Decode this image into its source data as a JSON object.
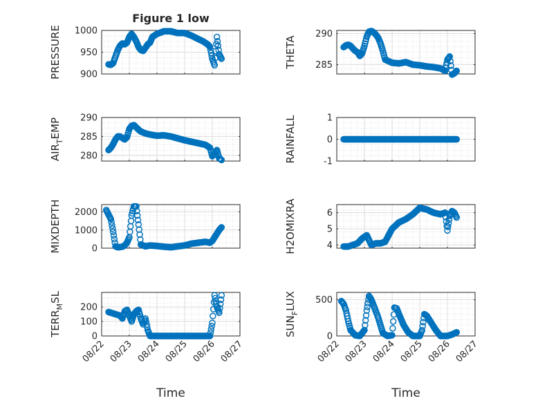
{
  "figure": {
    "title": "Figure 1 low"
  },
  "chart_data": [
    {
      "type": "scatter",
      "title": "Figure 1 low",
      "ylabel": "PRESSURE",
      "ylabel_sub": "",
      "ylim": [
        900,
        1000
      ],
      "yticks": [
        "900",
        "950",
        "1000"
      ],
      "xlim": [
        "08/22",
        "08/27"
      ],
      "xticks": [],
      "xlabel": "",
      "grid": true,
      "minor_grid": true,
      "marker": "open-circle",
      "color": "#0072bd",
      "x": [
        "08/22 06:00",
        "08/22 08:00",
        "08/22 10:00",
        "08/22 12:00",
        "08/22 14:00",
        "08/22 16:00",
        "08/22 18:00",
        "08/22 20:00",
        "08/22 22:00",
        "08/23 00:00",
        "08/23 02:00",
        "08/23 04:00",
        "08/23 06:00",
        "08/23 08:00",
        "08/23 10:00",
        "08/23 12:00",
        "08/23 14:00",
        "08/23 16:00",
        "08/23 18:00",
        "08/23 20:00",
        "08/24 00:00",
        "08/24 06:00",
        "08/24 12:00",
        "08/24 18:00",
        "08/25 00:00",
        "08/25 06:00",
        "08/25 12:00",
        "08/25 16:00",
        "08/25 20:00",
        "08/25 22:00",
        "08/26 00:00",
        "08/26 02:00",
        "08/26 04:00",
        "08/26 06:00",
        "08/26 08:00"
      ],
      "y": [
        922,
        921,
        925,
        940,
        955,
        965,
        970,
        968,
        972,
        985,
        992,
        985,
        975,
        962,
        955,
        953,
        960,
        968,
        972,
        985,
        992,
        998,
        998,
        994,
        994,
        988,
        980,
        975,
        968,
        962,
        935,
        920,
        985,
        945,
        935
      ]
    },
    {
      "type": "scatter",
      "title": "",
      "ylabel": "THETA",
      "ylabel_sub": "",
      "ylim": [
        283.5,
        290.5
      ],
      "yticks": [
        "285",
        "290"
      ],
      "xlim": [
        "08/22",
        "08/27"
      ],
      "xticks": [],
      "xlabel": "",
      "grid": true,
      "minor_grid": true,
      "marker": "open-circle",
      "color": "#0072bd",
      "x": [
        "08/22 06:00",
        "08/22 08:00",
        "08/22 10:00",
        "08/22 12:00",
        "08/22 14:00",
        "08/22 16:00",
        "08/22 18:00",
        "08/22 20:00",
        "08/22 22:00",
        "08/23 00:00",
        "08/23 02:00",
        "08/23 04:00",
        "08/23 06:00",
        "08/23 08:00",
        "08/23 10:00",
        "08/23 12:00",
        "08/23 14:00",
        "08/23 16:00",
        "08/23 18:00",
        "08/24 00:00",
        "08/24 06:00",
        "08/24 12:00",
        "08/24 18:00",
        "08/25 00:00",
        "08/25 06:00",
        "08/25 12:00",
        "08/25 18:00",
        "08/25 22:00",
        "08/26 00:00",
        "08/26 02:00",
        "08/26 04:00",
        "08/26 06:00",
        "08/26 08:00"
      ],
      "y": [
        287.8,
        288.1,
        288.2,
        288.0,
        287.6,
        287.2,
        287.0,
        286.4,
        286.8,
        288.0,
        289.5,
        290.3,
        290.4,
        290.2,
        289.8,
        289.3,
        288.4,
        287.2,
        285.8,
        285.3,
        285.2,
        285.4,
        285.0,
        284.9,
        284.7,
        284.6,
        284.4,
        284.0,
        285.8,
        286.3,
        283.4,
        283.6,
        284.0
      ]
    },
    {
      "type": "scatter",
      "title": "",
      "ylabel": "AIR",
      "ylabel_sub": "T",
      "ylabel_rest": "EMP",
      "ylim": [
        278.5,
        290
      ],
      "yticks": [
        "280",
        "285",
        "290"
      ],
      "xlim": [
        "08/22",
        "08/27"
      ],
      "xticks": [],
      "xlabel": "",
      "grid": true,
      "minor_grid": true,
      "marker": "open-circle",
      "color": "#0072bd",
      "x": [
        "08/22 06:00",
        "08/22 08:00",
        "08/22 10:00",
        "08/22 12:00",
        "08/22 14:00",
        "08/22 16:00",
        "08/22 18:00",
        "08/22 20:00",
        "08/22 22:00",
        "08/23 00:00",
        "08/23 02:00",
        "08/23 04:00",
        "08/23 06:00",
        "08/23 08:00",
        "08/23 10:00",
        "08/23 14:00",
        "08/23 18:00",
        "08/24 00:00",
        "08/24 06:00",
        "08/24 12:00",
        "08/24 18:00",
        "08/25 00:00",
        "08/25 06:00",
        "08/25 12:00",
        "08/25 18:00",
        "08/25 22:00",
        "08/26 00:00",
        "08/26 02:00",
        "08/26 04:00",
        "08/26 06:00",
        "08/26 08:00"
      ],
      "y": [
        281.4,
        282.0,
        283.0,
        284.2,
        285.0,
        285.0,
        284.6,
        284.2,
        284.8,
        287.0,
        287.8,
        288.0,
        287.4,
        286.8,
        286.3,
        285.8,
        285.5,
        285.2,
        285.3,
        285.0,
        284.5,
        284.0,
        283.6,
        283.2,
        282.8,
        282.0,
        279.8,
        280.4,
        281.4,
        279.2,
        278.8
      ]
    },
    {
      "type": "scatter",
      "title": "",
      "ylabel": "RAINFALL",
      "ylabel_sub": "",
      "ylim": [
        -1,
        1
      ],
      "yticks": [
        "-1",
        "0",
        "1"
      ],
      "xlim": [
        "08/22",
        "08/27"
      ],
      "xticks": [],
      "xlabel": "",
      "grid": true,
      "minor_grid": true,
      "marker": "open-circle",
      "color": "#0072bd",
      "x": [
        "08/22 06:00",
        "08/22 12:00",
        "08/22 18:00",
        "08/23 00:00",
        "08/23 06:00",
        "08/23 12:00",
        "08/23 18:00",
        "08/24 00:00",
        "08/24 06:00",
        "08/24 12:00",
        "08/24 18:00",
        "08/25 00:00",
        "08/25 06:00",
        "08/25 12:00",
        "08/25 18:00",
        "08/26 00:00",
        "08/26 06:00",
        "08/26 08:00"
      ],
      "y": [
        0,
        0,
        0,
        0,
        0,
        0,
        0,
        0,
        0,
        0,
        0,
        0,
        0,
        0,
        0,
        0,
        0,
        0
      ]
    },
    {
      "type": "scatter",
      "title": "",
      "ylabel": "MIXDEPTH",
      "ylabel_sub": "",
      "ylim": [
        0,
        2400
      ],
      "yticks": [
        "0",
        "1000",
        "2000"
      ],
      "xlim": [
        "08/22",
        "08/27"
      ],
      "xticks": [],
      "xlabel": "",
      "grid": true,
      "minor_grid": true,
      "marker": "open-circle",
      "color": "#0072bd",
      "x": [
        "08/22 04:00",
        "08/22 06:00",
        "08/22 08:00",
        "08/22 10:00",
        "08/22 12:00",
        "08/22 14:00",
        "08/22 16:00",
        "08/22 18:00",
        "08/22 20:00",
        "08/22 22:00",
        "08/23 00:00",
        "08/23 02:00",
        "08/23 04:00",
        "08/23 06:00",
        "08/23 08:00",
        "08/23 10:00",
        "08/23 14:00",
        "08/23 18:00",
        "08/24 00:00",
        "08/24 06:00",
        "08/24 12:00",
        "08/24 18:00",
        "08/25 00:00",
        "08/25 06:00",
        "08/25 12:00",
        "08/25 18:00",
        "08/25 22:00",
        "08/26 00:00",
        "08/26 02:00",
        "08/26 04:00",
        "08/26 06:00",
        "08/26 08:00"
      ],
      "y": [
        2100,
        1850,
        1600,
        900,
        100,
        50,
        60,
        80,
        150,
        300,
        600,
        1800,
        2300,
        2300,
        1300,
        200,
        100,
        150,
        120,
        80,
        50,
        100,
        150,
        250,
        300,
        350,
        300,
        400,
        600,
        800,
        1000,
        1150
      ]
    },
    {
      "type": "scatter",
      "title": "",
      "ylabel": "H2OMIXRA",
      "ylabel_sub": "",
      "ylim": [
        3.8,
        6.5
      ],
      "yticks": [
        "4",
        "5",
        "6"
      ],
      "xlim": [
        "08/22",
        "08/27"
      ],
      "xticks": [],
      "xlabel": "",
      "grid": true,
      "minor_grid": true,
      "marker": "open-circle",
      "color": "#0072bd",
      "x": [
        "08/22 06:00",
        "08/22 10:00",
        "08/22 14:00",
        "08/22 18:00",
        "08/22 22:00",
        "08/23 02:00",
        "08/23 06:00",
        "08/23 10:00",
        "08/23 14:00",
        "08/23 18:00",
        "08/24 00:00",
        "08/24 06:00",
        "08/24 12:00",
        "08/24 18:00",
        "08/25 00:00",
        "08/25 06:00",
        "08/25 12:00",
        "08/25 18:00",
        "08/25 22:00",
        "08/26 00:00",
        "08/26 02:00",
        "08/26 04:00",
        "08/26 06:00",
        "08/26 08:00"
      ],
      "y": [
        3.9,
        3.9,
        4.0,
        4.1,
        4.4,
        4.6,
        4.0,
        4.1,
        4.1,
        4.2,
        5.0,
        5.4,
        5.6,
        5.9,
        6.3,
        6.2,
        6.0,
        5.9,
        6.0,
        4.9,
        5.8,
        6.1,
        6.0,
        5.7
      ]
    },
    {
      "type": "scatter",
      "title": "",
      "ylabel": "TERR",
      "ylabel_sub": "M",
      "ylabel_rest": "SL",
      "ylim": [
        0,
        300
      ],
      "yticks": [
        "0",
        "100",
        "200"
      ],
      "xlim": [
        "08/22",
        "08/27"
      ],
      "xticks": [
        "08/22",
        "08/23",
        "08/24",
        "08/25",
        "08/26",
        "08/27"
      ],
      "xlabel": "Time",
      "grid": true,
      "minor_grid": true,
      "marker": "open-circle",
      "color": "#0072bd",
      "x": [
        "08/22 06:00",
        "08/22 08:00",
        "08/22 12:00",
        "08/22 16:00",
        "08/22 18:00",
        "08/22 20:00",
        "08/22 22:00",
        "08/23 00:00",
        "08/23 02:00",
        "08/23 04:00",
        "08/23 06:00",
        "08/23 08:00",
        "08/23 10:00",
        "08/23 12:00",
        "08/23 14:00",
        "08/23 16:00",
        "08/23 18:00",
        "08/24 00:00",
        "08/24 06:00",
        "08/24 12:00",
        "08/24 18:00",
        "08/25 00:00",
        "08/25 06:00",
        "08/25 12:00",
        "08/25 18:00",
        "08/25 22:00",
        "08/26 00:00",
        "08/26 02:00",
        "08/26 04:00",
        "08/26 06:00",
        "08/26 08:00"
      ],
      "y": [
        165,
        160,
        150,
        140,
        120,
        170,
        180,
        140,
        100,
        150,
        170,
        180,
        120,
        80,
        120,
        40,
        0,
        0,
        0,
        0,
        0,
        0,
        0,
        0,
        0,
        0,
        90,
        280,
        200,
        160,
        280
      ]
    },
    {
      "type": "scatter",
      "title": "",
      "ylabel": "SUN",
      "ylabel_sub": "F",
      "ylabel_rest": "LUX",
      "ylim": [
        0,
        600
      ],
      "yticks": [
        "0",
        "500"
      ],
      "xlim": [
        "08/22",
        "08/27"
      ],
      "xticks": [
        "08/22",
        "08/23",
        "08/24",
        "08/25",
        "08/26",
        "08/27"
      ],
      "xlabel": "Time",
      "grid": true,
      "minor_grid": true,
      "marker": "open-circle",
      "color": "#0072bd",
      "x": [
        "08/22 04:00",
        "08/22 06:00",
        "08/22 08:00",
        "08/22 10:00",
        "08/22 12:00",
        "08/22 16:00",
        "08/22 20:00",
        "08/23 00:00",
        "08/23 02:00",
        "08/23 04:00",
        "08/23 06:00",
        "08/23 08:00",
        "08/23 12:00",
        "08/23 16:00",
        "08/23 20:00",
        "08/24 00:00",
        "08/24 02:00",
        "08/24 04:00",
        "08/24 06:00",
        "08/24 10:00",
        "08/24 14:00",
        "08/24 18:00",
        "08/25 00:00",
        "08/25 02:00",
        "08/25 04:00",
        "08/25 06:00",
        "08/25 10:00",
        "08/25 14:00",
        "08/25 18:00",
        "08/26 00:00",
        "08/26 04:00",
        "08/26 08:00"
      ],
      "y": [
        480,
        440,
        350,
        200,
        80,
        10,
        0,
        80,
        350,
        550,
        500,
        420,
        250,
        40,
        0,
        10,
        390,
        380,
        300,
        150,
        50,
        0,
        0,
        80,
        300,
        280,
        180,
        80,
        0,
        0,
        20,
        50
      ]
    }
  ]
}
